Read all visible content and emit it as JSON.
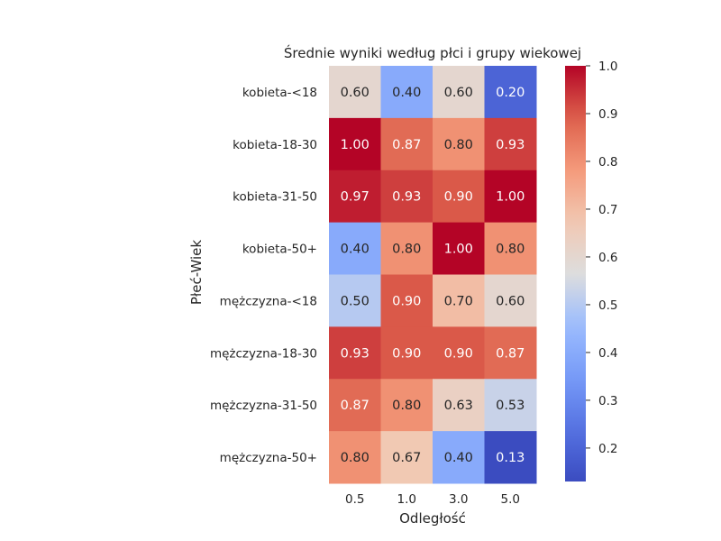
{
  "chart_data": {
    "type": "heatmap",
    "title": "Średnie wyniki według płci i grupy wiekowej",
    "xlabel": "Odległość",
    "ylabel": "Płeć-Wiek",
    "x_categories": [
      "0.5",
      "1.0",
      "3.0",
      "5.0"
    ],
    "y_categories": [
      "kobieta-<18",
      "kobieta-18-30",
      "kobieta-31-50",
      "kobieta-50+",
      "mężczyzna-<18",
      "mężczyzna-18-30",
      "mężczyzna-31-50",
      "mężczyzna-50+"
    ],
    "values": [
      [
        0.6,
        0.4,
        0.6,
        0.2
      ],
      [
        1.0,
        0.87,
        0.8,
        0.93
      ],
      [
        0.97,
        0.93,
        0.9,
        1.0
      ],
      [
        0.4,
        0.8,
        1.0,
        0.8
      ],
      [
        0.5,
        0.9,
        0.7,
        0.6
      ],
      [
        0.93,
        0.9,
        0.9,
        0.87
      ],
      [
        0.87,
        0.8,
        0.63,
        0.53
      ],
      [
        0.8,
        0.67,
        0.4,
        0.13
      ]
    ],
    "colormap": "coolwarm",
    "value_range": [
      0.13,
      1.0
    ],
    "colorbar_ticks": [
      "0.2",
      "0.3",
      "0.4",
      "0.5",
      "0.6",
      "0.7",
      "0.8",
      "0.9",
      "1.0"
    ],
    "annotation_format": "0.00",
    "grid": false
  }
}
